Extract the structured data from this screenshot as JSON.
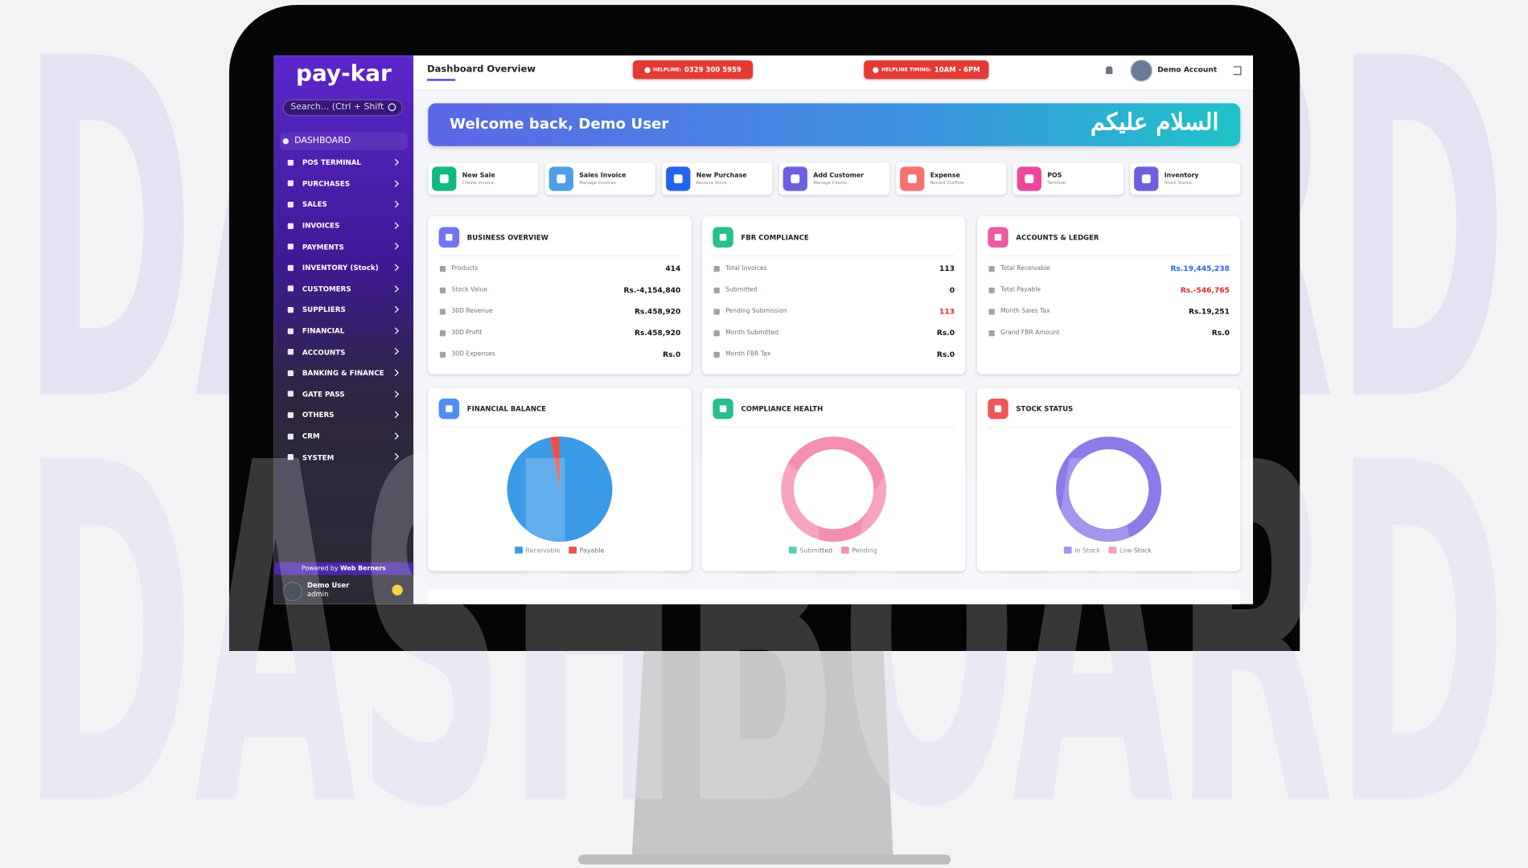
{
  "background_text": "DASHBOARD",
  "sidebar": {
    "logo": "pay-kar",
    "search": "Search... (Ctrl + Shift",
    "menu": [
      "DASHBOARD",
      "POS TERMINAL",
      "PURCHASES",
      "SALES",
      "INVOICES",
      "PAYMENTS",
      "INVENTORY (Stock)",
      "CUSTOMERS",
      "SUPPLIERS",
      "FINANCIAL",
      "ACCOUNTS",
      "BANKING & FINANCE",
      "GATE PASS",
      "OTHERS",
      "CRM",
      "SYSTEM"
    ],
    "powered_by": "Powered by",
    "powered_brand": "Web Berners",
    "user": {
      "name": "Demo User",
      "role": "admin"
    }
  },
  "header": {
    "title": "Dashboard Overview",
    "helpline_label": "HELPLINE:",
    "helpline": "0329 300 5959",
    "timing_label": "HELPLINE TIMING:",
    "timing": "10AM - 6PM",
    "account": "Demo Account"
  },
  "welcome": {
    "text": "Welcome back, Demo User",
    "greeting": "السلام عليكم"
  },
  "quick_actions": [
    {
      "title": "New Sale",
      "subtitle": "Create Invoice",
      "color": "#10b981"
    },
    {
      "title": "Sales Invoice",
      "subtitle": "Manage Invoices",
      "color": "#4f9ee8"
    },
    {
      "title": "New Purchase",
      "subtitle": "Receive Stock",
      "color": "#2563eb"
    },
    {
      "title": "Add Customer",
      "subtitle": "Manage Clients",
      "color": "#6d5fe0"
    },
    {
      "title": "Expense",
      "subtitle": "Record Outflow",
      "color": "#f87171"
    },
    {
      "title": "POS",
      "subtitle": "Terminal",
      "color": "#ec4899"
    },
    {
      "title": "Inventory",
      "subtitle": "Stock Status",
      "color": "#6d5fe0"
    }
  ],
  "panels": [
    {
      "title": "BUSINESS OVERVIEW",
      "color": "#6366f1",
      "rows": [
        {
          "label": "Products",
          "value": "414"
        },
        {
          "label": "Stock Value",
          "value": "Rs.-4,154,840"
        },
        {
          "label": "30D Revenue",
          "value": "Rs.458,920"
        },
        {
          "label": "30D Profit",
          "value": "Rs.458,920"
        },
        {
          "label": "30D Expenses",
          "value": "Rs.0"
        }
      ]
    },
    {
      "title": "FBR COMPLIANCE",
      "color": "#10b981",
      "rows": [
        {
          "label": "Total Invoices",
          "value": "113"
        },
        {
          "label": "Submitted",
          "value": "0"
        },
        {
          "label": "Pending Submission",
          "value": "113",
          "color": "#dc2626"
        },
        {
          "label": "Month Submitted",
          "value": "Rs.0"
        },
        {
          "label": "Month FBR Tax",
          "value": "Rs.0"
        }
      ]
    },
    {
      "title": "ACCOUNTS & LEDGER",
      "color": "#ec4899",
      "rows": [
        {
          "label": "Total Receivable",
          "value": "Rs.19,445,238",
          "color": "#2563eb"
        },
        {
          "label": "Total Payable",
          "value": "Rs.-546,765",
          "color": "#dc2626"
        },
        {
          "label": "Month Sales Tax",
          "value": "Rs.19,251"
        },
        {
          "label": "Grand FBR Amount",
          "value": "Rs.0"
        }
      ]
    }
  ],
  "charts": [
    {
      "type": "pie",
      "title": "FINANCIAL BALANCE",
      "icon_color": "#3b82f6",
      "labels": [
        "Receivable",
        "Payable"
      ],
      "colors": [
        "#3b9ae8",
        "#e5534b"
      ],
      "values": [
        97,
        3
      ]
    },
    {
      "type": "donut",
      "title": "COMPLIANCE HEALTH",
      "icon_color": "#10b981",
      "labels": [
        "Submitted",
        "Pending"
      ],
      "colors": [
        "#2ec4a6",
        "#f48fb1"
      ],
      "values": [
        0,
        100
      ]
    },
    {
      "type": "donut",
      "title": "STOCK STATUS",
      "icon_color": "#ef4444",
      "labels": [
        "In Stock",
        "Low Stock"
      ],
      "colors": [
        "#8b7be8",
        "#f28b9a"
      ],
      "values": [
        100,
        0
      ]
    }
  ]
}
